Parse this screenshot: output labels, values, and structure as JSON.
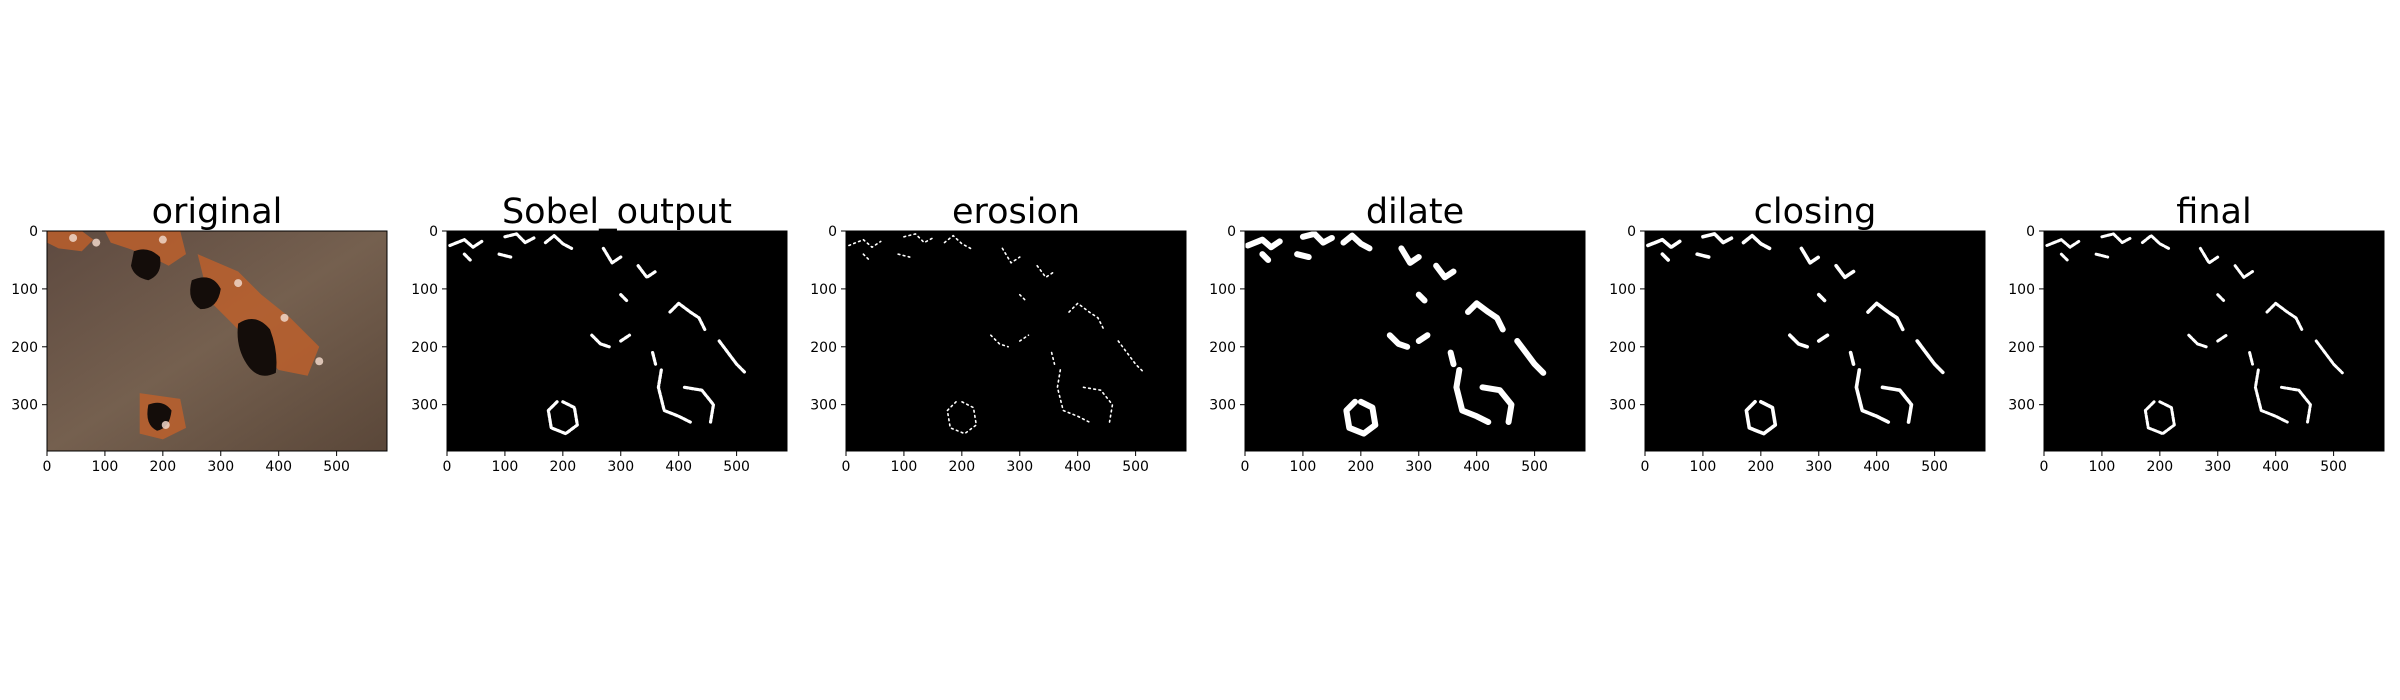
{
  "figure": {
    "panels": [
      {
        "title": "original",
        "kind": "photo"
      },
      {
        "title": "Sobel_output",
        "kind": "mask",
        "level": "sobel"
      },
      {
        "title": "erosion",
        "kind": "mask",
        "level": "erosion"
      },
      {
        "title": "dilate",
        "kind": "mask",
        "level": "dilate"
      },
      {
        "title": "closing",
        "kind": "mask",
        "level": "closing"
      },
      {
        "title": "final",
        "kind": "mask",
        "level": "final"
      }
    ],
    "x_ticks": [
      "0",
      "100",
      "200",
      "300",
      "400",
      "500"
    ],
    "y_ticks": [
      "0",
      "100",
      "200",
      "300"
    ],
    "x_range": [
      0,
      587
    ],
    "y_range": [
      0,
      380
    ],
    "colors": {
      "mask_background": "#000000",
      "mask_foreground": "#ffffff",
      "rock_base": "#6b5548",
      "rust": "#c0602a",
      "hole": "#140d0a"
    }
  }
}
